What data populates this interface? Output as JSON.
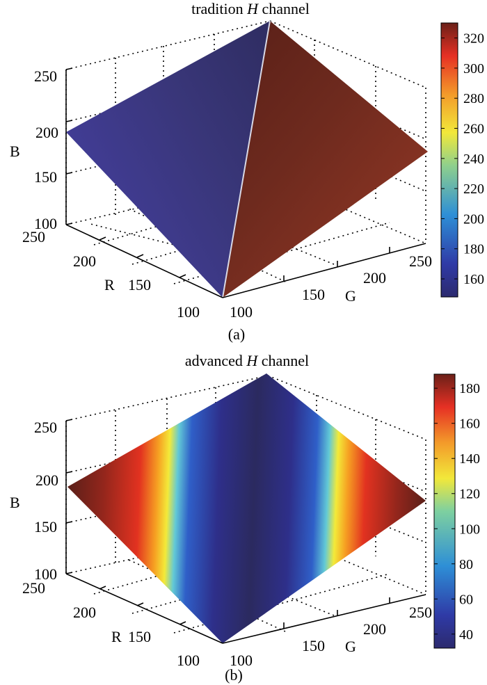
{
  "chart_data": [
    {
      "type": "surface3d",
      "title_pre": "tradition ",
      "title_var": "H",
      "title_post": " channel",
      "caption": "(a)",
      "xlabel": "G",
      "ylabel": "R",
      "zlabel": "B",
      "x_ticks": [
        "100",
        "150",
        "200",
        "250"
      ],
      "y_ticks": [
        "100",
        "150",
        "200",
        "250"
      ],
      "z_ticks": [
        "100",
        "150",
        "200",
        "250"
      ],
      "xlim": [
        100,
        255
      ],
      "ylim": [
        100,
        255
      ],
      "zlim": [
        100,
        255
      ],
      "colorbar": {
        "ticks": [
          "160",
          "180",
          "200",
          "220",
          "240",
          "260",
          "280",
          "300",
          "320"
        ],
        "tick_values": [
          160,
          180,
          200,
          220,
          240,
          260,
          280,
          300,
          320
        ],
        "range": [
          148,
          330
        ],
        "colormap": "jet"
      },
      "surface": {
        "description_values": "H value on left facet ranges ~150-170, right facet ~315-330",
        "left_facet_h": [
          150,
          170
        ],
        "right_facet_h": [
          315,
          330
        ]
      }
    },
    {
      "type": "surface3d",
      "title_pre": "advanced ",
      "title_var": "H",
      "title_post": " channel",
      "caption": "(b)",
      "xlabel": "G",
      "ylabel": "R",
      "zlabel": "B",
      "x_ticks": [
        "100",
        "150",
        "200",
        "250"
      ],
      "y_ticks": [
        "100",
        "150",
        "200",
        "250"
      ],
      "z_ticks": [
        "100",
        "150",
        "200",
        "250"
      ],
      "xlim": [
        100,
        255
      ],
      "ylim": [
        100,
        255
      ],
      "zlim": [
        100,
        255
      ],
      "colorbar": {
        "ticks": [
          "40",
          "60",
          "80",
          "100",
          "120",
          "140",
          "160",
          "180"
        ],
        "tick_values": [
          40,
          60,
          80,
          100,
          120,
          140,
          160,
          180
        ],
        "range": [
          32,
          188
        ],
        "colormap": "jet"
      },
      "surface": {
        "h_min": 33,
        "h_max": 187
      }
    }
  ]
}
